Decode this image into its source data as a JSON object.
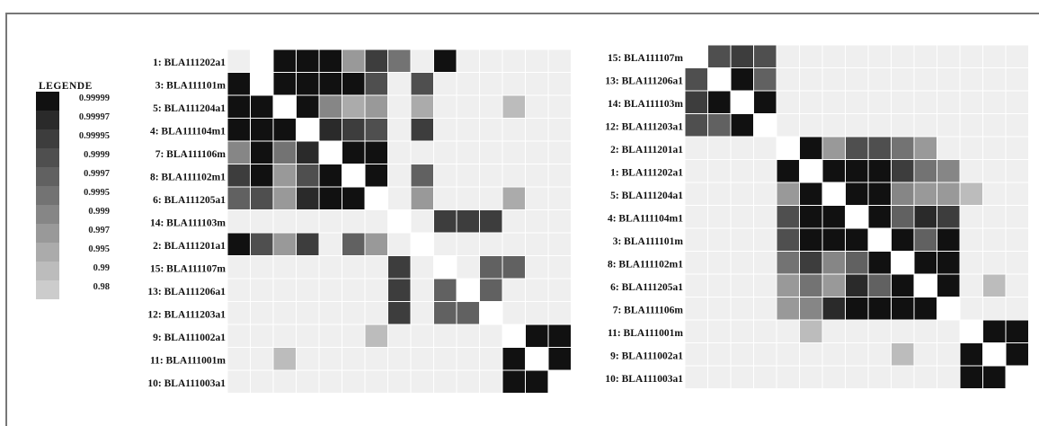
{
  "legend": {
    "title": "LEGENDE",
    "levels": [
      {
        "label": "0.99999",
        "color": "#111111"
      },
      {
        "label": "0.99997",
        "color": "#2a2a2a"
      },
      {
        "label": "0.99995",
        "color": "#3d3d3d"
      },
      {
        "label": "0.9999",
        "color": "#4f4f4f"
      },
      {
        "label": "0.9997",
        "color": "#616161"
      },
      {
        "label": "0.9995",
        "color": "#737373"
      },
      {
        "label": "0.999",
        "color": "#868686"
      },
      {
        "label": "0.997",
        "color": "#999999"
      },
      {
        "label": "0.995",
        "color": "#ababab"
      },
      {
        "label": "0.99",
        "color": "#bcbcbc"
      },
      {
        "label": "0.98",
        "color": "#cccccc"
      }
    ],
    "empty_color": "#efefef",
    "diagonal_color": "#ffffff"
  },
  "chart_data": [
    {
      "type": "heatmap",
      "row_labels": [
        "1: BLA111202a1",
        "3: BLA111101m",
        "5: BLA111204a1",
        "4: BLA111104m1",
        "7: BLA111106m",
        "8: BLA111102m1",
        "6: BLA111205a1",
        "14: BLA111103m",
        "2: BLA111201a1",
        "15: BLA111107m",
        "13: BLA111206a1",
        "12: BLA111203a1",
        "9: BLA111002a1",
        "11: BLA111001m",
        "10: BLA111003a1"
      ],
      "n_cols": 15,
      "values": [
        [
          0,
          -1,
          1,
          1,
          1,
          8,
          3,
          6,
          0,
          1,
          0,
          0,
          0,
          0,
          0
        ],
        [
          1,
          -1,
          1,
          1,
          1,
          1,
          4,
          0,
          4,
          0,
          0,
          0,
          0,
          0,
          0
        ],
        [
          1,
          1,
          -1,
          1,
          7,
          9,
          8,
          0,
          9,
          0,
          0,
          0,
          10,
          0,
          0
        ],
        [
          1,
          1,
          1,
          -1,
          2,
          3,
          4,
          0,
          3,
          0,
          0,
          0,
          0,
          0,
          0
        ],
        [
          7,
          1,
          6,
          2,
          -1,
          1,
          1,
          0,
          0,
          0,
          0,
          0,
          0,
          0,
          0
        ],
        [
          3,
          1,
          8,
          4,
          1,
          -1,
          1,
          0,
          5,
          0,
          0,
          0,
          0,
          0,
          0
        ],
        [
          5,
          4,
          8,
          2,
          1,
          1,
          -1,
          0,
          8,
          0,
          0,
          0,
          9,
          0,
          0
        ],
        [
          0,
          0,
          0,
          0,
          0,
          0,
          0,
          -1,
          0,
          3,
          3,
          3,
          0,
          0,
          0
        ],
        [
          1,
          4,
          8,
          3,
          0,
          5,
          8,
          0,
          -1,
          0,
          0,
          0,
          0,
          0,
          0
        ],
        [
          0,
          0,
          0,
          0,
          0,
          0,
          0,
          3,
          0,
          -1,
          0,
          5,
          5,
          0,
          0
        ],
        [
          0,
          0,
          0,
          0,
          0,
          0,
          0,
          3,
          0,
          5,
          -1,
          5,
          0,
          0,
          0
        ],
        [
          0,
          0,
          0,
          0,
          0,
          0,
          0,
          3,
          0,
          5,
          5,
          -1,
          0,
          0,
          0
        ],
        [
          0,
          0,
          0,
          0,
          0,
          0,
          10,
          0,
          0,
          0,
          0,
          0,
          -1,
          1,
          1
        ],
        [
          0,
          0,
          10,
          0,
          0,
          0,
          0,
          0,
          0,
          0,
          0,
          0,
          1,
          -1,
          1
        ],
        [
          0,
          0,
          0,
          0,
          0,
          0,
          0,
          0,
          0,
          0,
          0,
          0,
          1,
          1,
          -1
        ]
      ]
    },
    {
      "type": "heatmap",
      "row_labels": [
        "15: BLA111107m",
        "13: BLA111206a1",
        "14: BLA111103m",
        "12: BLA111203a1",
        "2: BLA111201a1",
        "1: BLA111202a1",
        "5: BLA111204a1",
        "4: BLA111104m1",
        "3: BLA111101m",
        "8: BLA111102m1",
        "6: BLA111205a1",
        "7: BLA111106m",
        "11: BLA111001m",
        "9: BLA111002a1",
        "10: BLA111003a1"
      ],
      "n_cols": 15,
      "values": [
        [
          -1,
          4,
          3,
          4,
          0,
          0,
          0,
          0,
          0,
          0,
          0,
          0,
          0,
          0,
          0
        ],
        [
          4,
          -1,
          1,
          5,
          0,
          0,
          0,
          0,
          0,
          0,
          0,
          0,
          0,
          0,
          0
        ],
        [
          3,
          1,
          -1,
          1,
          0,
          0,
          0,
          0,
          0,
          0,
          0,
          0,
          0,
          0,
          0
        ],
        [
          4,
          5,
          1,
          -1,
          0,
          0,
          0,
          0,
          0,
          0,
          0,
          0,
          0,
          0,
          0
        ],
        [
          0,
          0,
          0,
          0,
          -1,
          1,
          8,
          4,
          4,
          6,
          8,
          0,
          0,
          0,
          0
        ],
        [
          0,
          0,
          0,
          0,
          1,
          -1,
          1,
          1,
          1,
          3,
          6,
          7,
          0,
          0,
          0
        ],
        [
          0,
          0,
          0,
          0,
          8,
          1,
          -1,
          1,
          1,
          7,
          8,
          8,
          10,
          0,
          0
        ],
        [
          0,
          0,
          0,
          0,
          4,
          1,
          1,
          -1,
          1,
          5,
          2,
          3,
          0,
          0,
          0
        ],
        [
          0,
          0,
          0,
          0,
          4,
          1,
          1,
          1,
          -1,
          1,
          5,
          1,
          0,
          0,
          0
        ],
        [
          0,
          0,
          0,
          0,
          6,
          3,
          7,
          5,
          1,
          -1,
          1,
          1,
          0,
          0,
          0
        ],
        [
          0,
          0,
          0,
          0,
          8,
          6,
          8,
          2,
          5,
          1,
          -1,
          1,
          0,
          10,
          0
        ],
        [
          0,
          0,
          0,
          0,
          8,
          7,
          2,
          1,
          1,
          1,
          1,
          -1,
          0,
          0,
          0
        ],
        [
          0,
          0,
          0,
          0,
          0,
          10,
          0,
          0,
          0,
          0,
          0,
          0,
          -1,
          1,
          1
        ],
        [
          0,
          0,
          0,
          0,
          0,
          0,
          0,
          0,
          0,
          10,
          0,
          0,
          1,
          -1,
          1
        ],
        [
          0,
          0,
          0,
          0,
          0,
          0,
          0,
          0,
          0,
          0,
          0,
          0,
          1,
          1,
          -1
        ]
      ]
    }
  ]
}
